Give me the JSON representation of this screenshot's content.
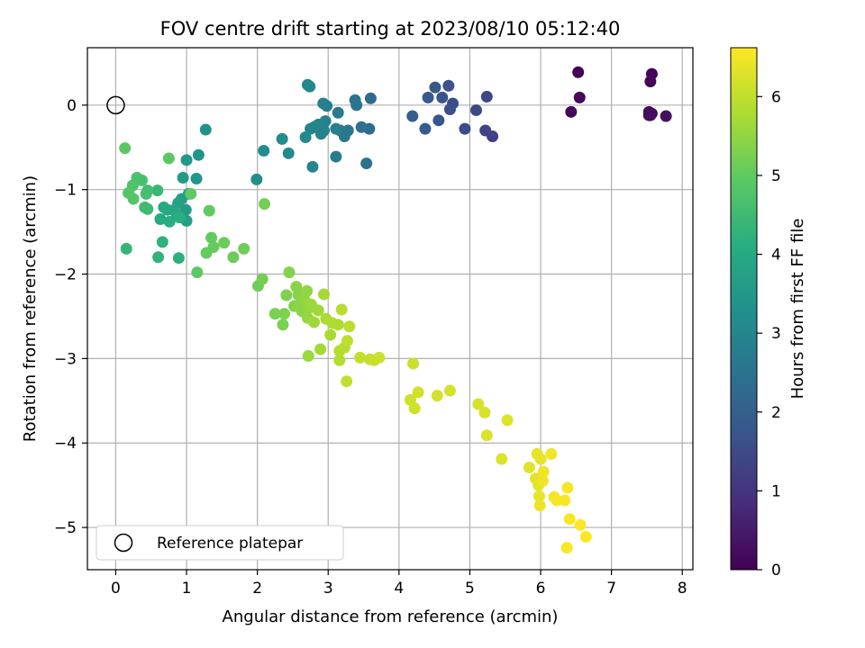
{
  "chart_data": {
    "type": "scatter",
    "title": "FOV centre drift starting at 2023/08/10 05:12:40",
    "xlabel": "Angular distance from reference (arcmin)",
    "ylabel": "Rotation from reference (arcmin)",
    "xlim": [
      -0.4,
      8.15
    ],
    "ylim": [
      -5.5,
      0.68
    ],
    "xticks": [
      0,
      1,
      2,
      3,
      4,
      5,
      6,
      7,
      8
    ],
    "yticks": [
      0,
      -1,
      -2,
      -3,
      -4,
      -5
    ],
    "grid": true,
    "colormap": "viridis",
    "colorbar": {
      "label": "Hours from first FF file",
      "range": [
        0,
        6.62
      ],
      "ticks": [
        0,
        1,
        2,
        3,
        4,
        5,
        6
      ]
    },
    "legend": {
      "position": "lower-left",
      "entries": [
        "Reference platepar"
      ]
    },
    "reference_marker": {
      "x": 0,
      "y": 0,
      "label": "Reference platepar"
    },
    "points": [
      {
        "x": 6.53,
        "y": 0.39,
        "h": 0.05
      },
      {
        "x": 7.57,
        "y": 0.37,
        "h": 0.08
      },
      {
        "x": 7.55,
        "y": 0.28,
        "h": 0.1
      },
      {
        "x": 6.55,
        "y": 0.09,
        "h": 0.12
      },
      {
        "x": 6.43,
        "y": -0.08,
        "h": 0.15
      },
      {
        "x": 7.53,
        "y": -0.08,
        "h": 0.18
      },
      {
        "x": 7.57,
        "y": -0.1,
        "h": 0.2
      },
      {
        "x": 7.53,
        "y": -0.12,
        "h": 0.22
      },
      {
        "x": 7.55,
        "y": -0.12,
        "h": 0.25
      },
      {
        "x": 7.77,
        "y": -0.13,
        "h": 0.27
      },
      {
        "x": 5.32,
        "y": -0.37,
        "h": 1.3
      },
      {
        "x": 5.22,
        "y": -0.3,
        "h": 1.35
      },
      {
        "x": 5.24,
        "y": 0.1,
        "h": 1.4
      },
      {
        "x": 5.09,
        "y": -0.06,
        "h": 1.45
      },
      {
        "x": 4.93,
        "y": -0.28,
        "h": 1.5
      },
      {
        "x": 4.76,
        "y": 0.02,
        "h": 1.55
      },
      {
        "x": 4.72,
        "y": -0.05,
        "h": 1.6
      },
      {
        "x": 4.7,
        "y": 0.23,
        "h": 1.65
      },
      {
        "x": 4.61,
        "y": 0.09,
        "h": 1.7
      },
      {
        "x": 4.56,
        "y": -0.18,
        "h": 1.75
      },
      {
        "x": 4.51,
        "y": 0.21,
        "h": 1.8
      },
      {
        "x": 4.41,
        "y": 0.09,
        "h": 1.85
      },
      {
        "x": 4.37,
        "y": -0.28,
        "h": 1.9
      },
      {
        "x": 4.19,
        "y": -0.13,
        "h": 1.95
      },
      {
        "x": 3.6,
        "y": 0.08,
        "h": 2.3
      },
      {
        "x": 3.58,
        "y": -0.28,
        "h": 2.35
      },
      {
        "x": 3.54,
        "y": -0.69,
        "h": 2.4
      },
      {
        "x": 3.47,
        "y": -0.26,
        "h": 2.45
      },
      {
        "x": 3.4,
        "y": 0.0,
        "h": 2.5
      },
      {
        "x": 3.38,
        "y": 0.06,
        "h": 2.55
      },
      {
        "x": 3.28,
        "y": -0.3,
        "h": 2.6
      },
      {
        "x": 3.23,
        "y": -0.37,
        "h": 2.65
      },
      {
        "x": 3.17,
        "y": -0.3,
        "h": 2.7
      },
      {
        "x": 3.14,
        "y": -0.09,
        "h": 2.7
      },
      {
        "x": 3.11,
        "y": -0.61,
        "h": 2.75
      },
      {
        "x": 3.11,
        "y": -0.28,
        "h": 2.8
      },
      {
        "x": 2.98,
        "y": -0.01,
        "h": 2.8
      },
      {
        "x": 2.93,
        "y": 0.02,
        "h": 2.85
      },
      {
        "x": 2.96,
        "y": -0.19,
        "h": 2.85
      },
      {
        "x": 2.94,
        "y": -0.3,
        "h": 2.9
      },
      {
        "x": 2.9,
        "y": -0.34,
        "h": 2.9
      },
      {
        "x": 2.86,
        "y": -0.23,
        "h": 2.95
      },
      {
        "x": 2.78,
        "y": -0.73,
        "h": 2.95
      },
      {
        "x": 2.8,
        "y": -0.26,
        "h": 3.0
      },
      {
        "x": 2.75,
        "y": -0.28,
        "h": 3.0
      },
      {
        "x": 2.74,
        "y": 0.22,
        "h": 3.05
      },
      {
        "x": 2.71,
        "y": 0.24,
        "h": 3.05
      },
      {
        "x": 2.68,
        "y": -0.38,
        "h": 3.1
      },
      {
        "x": 2.44,
        "y": -0.57,
        "h": 3.15
      },
      {
        "x": 2.35,
        "y": -0.4,
        "h": 3.15
      },
      {
        "x": 2.09,
        "y": -0.54,
        "h": 3.2
      },
      {
        "x": 1.99,
        "y": -0.88,
        "h": 3.25
      },
      {
        "x": 1.27,
        "y": -0.29,
        "h": 3.35
      },
      {
        "x": 1.17,
        "y": -0.59,
        "h": 3.4
      },
      {
        "x": 1.14,
        "y": -0.87,
        "h": 3.45
      },
      {
        "x": 1.0,
        "y": -0.65,
        "h": 3.5
      },
      {
        "x": 0.95,
        "y": -0.86,
        "h": 3.55
      },
      {
        "x": 1.03,
        "y": -1.05,
        "h": 3.6
      },
      {
        "x": 0.99,
        "y": -1.24,
        "h": 3.65
      },
      {
        "x": 1.0,
        "y": -1.37,
        "h": 3.7
      },
      {
        "x": 0.93,
        "y": -1.11,
        "h": 3.75
      },
      {
        "x": 0.88,
        "y": -1.16,
        "h": 3.8
      },
      {
        "x": 0.86,
        "y": -1.29,
        "h": 3.85
      },
      {
        "x": 0.82,
        "y": -1.24,
        "h": 3.9
      },
      {
        "x": 0.73,
        "y": -1.24,
        "h": 3.95
      },
      {
        "x": 0.68,
        "y": -1.21,
        "h": 4.0
      },
      {
        "x": 0.63,
        "y": -1.35,
        "h": 4.05
      },
      {
        "x": 0.76,
        "y": -1.38,
        "h": 4.1
      },
      {
        "x": 0.9,
        "y": -1.33,
        "h": 4.15
      },
      {
        "x": 0.89,
        "y": -1.81,
        "h": 4.2
      },
      {
        "x": 0.66,
        "y": -1.62,
        "h": 4.25
      },
      {
        "x": 0.6,
        "y": -1.8,
        "h": 4.3
      },
      {
        "x": 0.15,
        "y": -1.7,
        "h": 4.35
      },
      {
        "x": 0.59,
        "y": -1.01,
        "h": 4.4
      },
      {
        "x": 0.45,
        "y": -1.23,
        "h": 4.45
      },
      {
        "x": 0.41,
        "y": -1.21,
        "h": 4.5
      },
      {
        "x": 0.45,
        "y": -1.01,
        "h": 4.55
      },
      {
        "x": 0.43,
        "y": -1.05,
        "h": 4.6
      },
      {
        "x": 0.37,
        "y": -0.89,
        "h": 4.65
      },
      {
        "x": 0.3,
        "y": -0.86,
        "h": 4.7
      },
      {
        "x": 0.24,
        "y": -0.95,
        "h": 4.75
      },
      {
        "x": 0.18,
        "y": -1.04,
        "h": 4.8
      },
      {
        "x": 0.25,
        "y": -1.11,
        "h": 4.85
      },
      {
        "x": 0.13,
        "y": -0.51,
        "h": 4.9
      },
      {
        "x": 0.75,
        "y": -0.63,
        "h": 4.9
      },
      {
        "x": 1.06,
        "y": -1.05,
        "h": 4.95
      },
      {
        "x": 1.15,
        "y": -1.98,
        "h": 4.95
      },
      {
        "x": 1.32,
        "y": -1.25,
        "h": 5.0
      },
      {
        "x": 1.35,
        "y": -1.57,
        "h": 5.0
      },
      {
        "x": 1.38,
        "y": -1.68,
        "h": 5.05
      },
      {
        "x": 1.28,
        "y": -1.75,
        "h": 5.05
      },
      {
        "x": 1.53,
        "y": -1.63,
        "h": 5.1
      },
      {
        "x": 1.66,
        "y": -1.8,
        "h": 5.1
      },
      {
        "x": 1.81,
        "y": -1.7,
        "h": 5.15
      },
      {
        "x": 2.01,
        "y": -2.14,
        "h": 5.15
      },
      {
        "x": 2.07,
        "y": -2.06,
        "h": 5.2
      },
      {
        "x": 2.1,
        "y": -1.17,
        "h": 5.2
      },
      {
        "x": 2.25,
        "y": -2.47,
        "h": 5.25
      },
      {
        "x": 2.36,
        "y": -2.6,
        "h": 5.25
      },
      {
        "x": 2.38,
        "y": -2.47,
        "h": 5.3
      },
      {
        "x": 2.41,
        "y": -2.25,
        "h": 5.3
      },
      {
        "x": 2.45,
        "y": -1.98,
        "h": 5.35
      },
      {
        "x": 2.52,
        "y": -2.38,
        "h": 5.35
      },
      {
        "x": 2.55,
        "y": -2.15,
        "h": 5.4
      },
      {
        "x": 2.58,
        "y": -2.25,
        "h": 5.4
      },
      {
        "x": 2.6,
        "y": -2.38,
        "h": 5.45
      },
      {
        "x": 2.63,
        "y": -2.44,
        "h": 5.45
      },
      {
        "x": 2.66,
        "y": -2.3,
        "h": 5.5
      },
      {
        "x": 2.7,
        "y": -2.2,
        "h": 5.5
      },
      {
        "x": 2.71,
        "y": -2.52,
        "h": 5.55
      },
      {
        "x": 2.73,
        "y": -2.4,
        "h": 5.55
      },
      {
        "x": 2.72,
        "y": -2.97,
        "h": 5.6
      },
      {
        "x": 2.76,
        "y": -2.36,
        "h": 5.6
      },
      {
        "x": 2.8,
        "y": -2.57,
        "h": 5.65
      },
      {
        "x": 2.86,
        "y": -2.43,
        "h": 5.65
      },
      {
        "x": 2.89,
        "y": -2.89,
        "h": 5.7
      },
      {
        "x": 2.94,
        "y": -2.24,
        "h": 5.7
      },
      {
        "x": 2.97,
        "y": -2.53,
        "h": 5.75
      },
      {
        "x": 3.03,
        "y": -2.72,
        "h": 5.75
      },
      {
        "x": 3.06,
        "y": -2.58,
        "h": 5.8
      },
      {
        "x": 3.14,
        "y": -2.6,
        "h": 5.8
      },
      {
        "x": 3.16,
        "y": -3.02,
        "h": 5.85
      },
      {
        "x": 3.16,
        "y": -2.91,
        "h": 5.85
      },
      {
        "x": 3.19,
        "y": -2.42,
        "h": 5.9
      },
      {
        "x": 3.23,
        "y": -2.87,
        "h": 5.9
      },
      {
        "x": 3.27,
        "y": -2.79,
        "h": 5.95
      },
      {
        "x": 3.3,
        "y": -2.62,
        "h": 5.95
      },
      {
        "x": 3.26,
        "y": -3.27,
        "h": 6.0
      },
      {
        "x": 3.45,
        "y": -2.99,
        "h": 6.0
      },
      {
        "x": 3.59,
        "y": -3.01,
        "h": 6.05
      },
      {
        "x": 3.65,
        "y": -3.02,
        "h": 6.05
      },
      {
        "x": 3.72,
        "y": -2.99,
        "h": 6.1
      },
      {
        "x": 4.2,
        "y": -3.06,
        "h": 6.1
      },
      {
        "x": 4.16,
        "y": -3.49,
        "h": 6.12
      },
      {
        "x": 4.22,
        "y": -3.59,
        "h": 6.14
      },
      {
        "x": 4.27,
        "y": -3.4,
        "h": 6.16
      },
      {
        "x": 4.54,
        "y": -3.44,
        "h": 6.18
      },
      {
        "x": 4.72,
        "y": -3.38,
        "h": 6.2
      },
      {
        "x": 5.12,
        "y": -3.54,
        "h": 6.22
      },
      {
        "x": 5.21,
        "y": -3.64,
        "h": 6.24
      },
      {
        "x": 5.24,
        "y": -3.91,
        "h": 6.26
      },
      {
        "x": 5.45,
        "y": -4.19,
        "h": 6.28
      },
      {
        "x": 5.53,
        "y": -3.73,
        "h": 6.3
      },
      {
        "x": 5.84,
        "y": -4.29,
        "h": 6.32
      },
      {
        "x": 5.93,
        "y": -4.42,
        "h": 6.34
      },
      {
        "x": 5.95,
        "y": -4.13,
        "h": 6.36
      },
      {
        "x": 5.97,
        "y": -4.5,
        "h": 6.38
      },
      {
        "x": 6.0,
        "y": -4.19,
        "h": 6.4
      },
      {
        "x": 5.98,
        "y": -4.63,
        "h": 6.42
      },
      {
        "x": 5.99,
        "y": -4.74,
        "h": 6.44
      },
      {
        "x": 6.04,
        "y": -4.34,
        "h": 6.46
      },
      {
        "x": 6.03,
        "y": -4.45,
        "h": 6.48
      },
      {
        "x": 6.15,
        "y": -4.13,
        "h": 6.5
      },
      {
        "x": 6.19,
        "y": -4.64,
        "h": 6.52
      },
      {
        "x": 6.23,
        "y": -4.68,
        "h": 6.54
      },
      {
        "x": 6.34,
        "y": -4.68,
        "h": 6.55
      },
      {
        "x": 6.38,
        "y": -4.53,
        "h": 6.56
      },
      {
        "x": 6.41,
        "y": -4.9,
        "h": 6.57
      },
      {
        "x": 6.37,
        "y": -5.24,
        "h": 6.58
      },
      {
        "x": 6.56,
        "y": -4.97,
        "h": 6.6
      },
      {
        "x": 6.64,
        "y": -5.11,
        "h": 6.62
      }
    ]
  }
}
